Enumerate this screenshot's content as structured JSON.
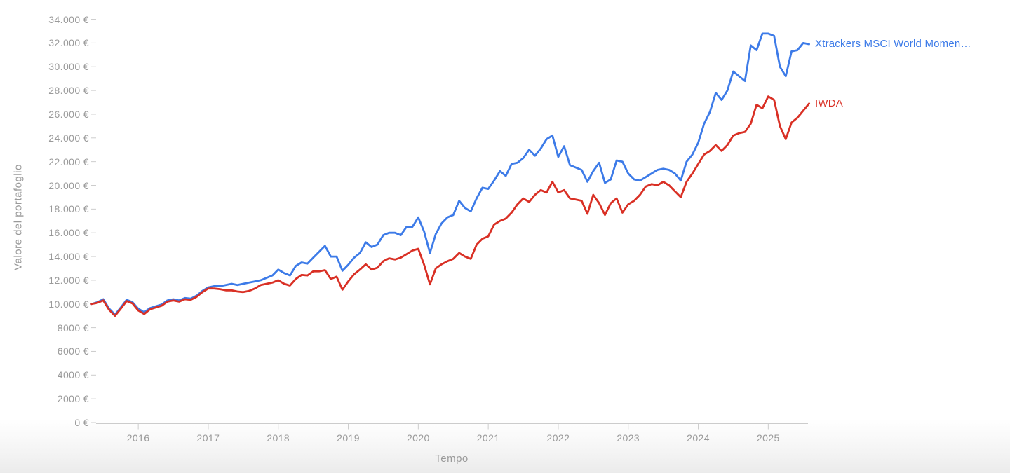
{
  "page": {
    "background": "#ffffff",
    "axis_line_color": "#cccccc",
    "axis_text_color": "#9a9a9a"
  },
  "chart_data": {
    "type": "line",
    "title": "",
    "xlabel": "Tempo",
    "ylabel": "Valore del portafoglio",
    "grid": false,
    "legend_position": "inline-right",
    "interval": "monthly",
    "x_start_month": "2015-05",
    "x_end_month": "2025-08",
    "ylim": [
      0,
      34000
    ],
    "y_ticks": {
      "values": [
        0,
        2000,
        4000,
        6000,
        8000,
        10000,
        12000,
        14000,
        16000,
        18000,
        20000,
        22000,
        24000,
        26000,
        28000,
        30000,
        32000,
        34000
      ],
      "labels": [
        "0 €",
        "2000 €",
        "4000 €",
        "6000 €",
        "8000 €",
        "10.000 €",
        "12.000 €",
        "14.000 €",
        "16.000 €",
        "18.000 €",
        "20.000 €",
        "22.000 €",
        "24.000 €",
        "26.000 €",
        "28.000 €",
        "30.000 €",
        "32.000 €",
        "34.000 €"
      ]
    },
    "x_ticks": {
      "labels": [
        "2016",
        "2017",
        "2018",
        "2019",
        "2020",
        "2021",
        "2022",
        "2023",
        "2024",
        "2025"
      ]
    },
    "series": [
      {
        "name": "Xtrackers MSCI World Momen…",
        "color": "#3d7be8",
        "values": [
          10000,
          10150,
          10400,
          9600,
          9100,
          9700,
          10350,
          10150,
          9600,
          9300,
          9650,
          9800,
          9950,
          10300,
          10400,
          10300,
          10500,
          10450,
          10700,
          11100,
          11400,
          11500,
          11500,
          11600,
          11700,
          11600,
          11700,
          11800,
          11900,
          12000,
          12200,
          12400,
          12900,
          12600,
          12400,
          13200,
          13500,
          13400,
          13900,
          14400,
          14900,
          14000,
          14000,
          12800,
          13300,
          13900,
          14300,
          15200,
          14800,
          15000,
          15800,
          16000,
          16000,
          15800,
          16500,
          16500,
          17300,
          16100,
          14300,
          15900,
          16800,
          17300,
          17500,
          18700,
          18100,
          17800,
          18900,
          19800,
          19700,
          20400,
          21200,
          20800,
          21800,
          21900,
          22300,
          23000,
          22500,
          23100,
          23900,
          24200,
          22400,
          23300,
          21700,
          21500,
          21300,
          20300,
          21200,
          21900,
          20200,
          20500,
          22100,
          22000,
          21000,
          20500,
          20400,
          20700,
          21000,
          21300,
          21400,
          21300,
          21000,
          20400,
          22000,
          22600,
          23600,
          25200,
          26200,
          27800,
          27200,
          28000,
          29600,
          29200,
          28800,
          31800,
          31400,
          32800,
          32800,
          32600,
          30000,
          29200,
          31300,
          31400,
          32000,
          31900
        ]
      },
      {
        "name": "IWDA",
        "color": "#d93025",
        "values": [
          10000,
          10100,
          10300,
          9500,
          9000,
          9600,
          10250,
          10050,
          9450,
          9150,
          9550,
          9700,
          9850,
          10200,
          10300,
          10200,
          10400,
          10350,
          10600,
          11000,
          11300,
          11300,
          11250,
          11150,
          11150,
          11050,
          11000,
          11100,
          11300,
          11600,
          11700,
          11800,
          12000,
          11700,
          11550,
          12100,
          12450,
          12400,
          12750,
          12750,
          12850,
          12100,
          12300,
          11200,
          11900,
          12500,
          12900,
          13350,
          12900,
          13050,
          13600,
          13850,
          13750,
          13900,
          14200,
          14500,
          14650,
          13300,
          11650,
          13000,
          13350,
          13600,
          13800,
          14300,
          14000,
          13800,
          15000,
          15500,
          15700,
          16700,
          17000,
          17200,
          17700,
          18400,
          18900,
          18600,
          19200,
          19600,
          19400,
          20300,
          19400,
          19600,
          18900,
          18800,
          18700,
          17600,
          19200,
          18500,
          17500,
          18500,
          18900,
          17700,
          18400,
          18700,
          19200,
          19900,
          20100,
          20000,
          20300,
          20000,
          19500,
          19000,
          20300,
          21000,
          21800,
          22600,
          22900,
          23400,
          22900,
          23400,
          24200,
          24400,
          24500,
          25200,
          26800,
          26500,
          27500,
          27200,
          25000,
          23900,
          25300,
          25700,
          26300,
          26900
        ]
      }
    ]
  }
}
